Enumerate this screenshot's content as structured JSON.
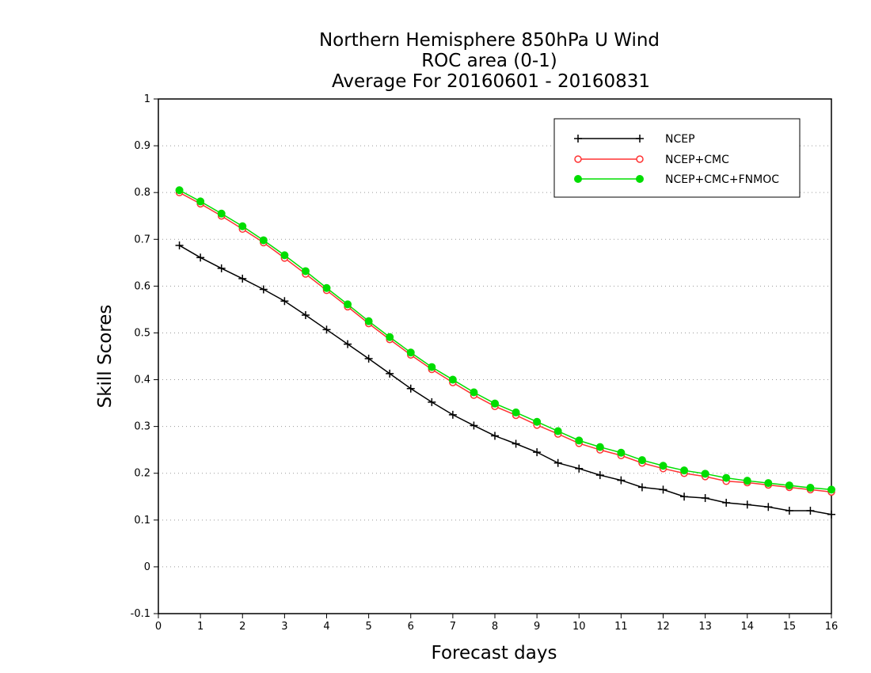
{
  "chart_data": {
    "type": "line",
    "title_lines": [
      "Northern Hemisphere 850hPa U Wind",
      "ROC area (0-1)",
      "Average For 20160601 - 20160831"
    ],
    "xlabel": "Forecast days",
    "ylabel": "Skill Scores",
    "xlim": [
      0,
      16
    ],
    "ylim": [
      -0.1,
      1
    ],
    "x_ticks": [
      0,
      1,
      2,
      3,
      4,
      5,
      6,
      7,
      8,
      9,
      10,
      11,
      12,
      13,
      14,
      15,
      16
    ],
    "x_tick_labels": [
      "0",
      "1",
      "2",
      "3",
      "4",
      "5",
      "6",
      "7",
      "8",
      "9",
      "10",
      "11",
      "12",
      "13",
      "14",
      "15",
      "16"
    ],
    "y_ticks": [
      -0.1,
      0,
      0.1,
      0.2,
      0.3,
      0.4,
      0.5,
      0.6,
      0.7,
      0.8,
      0.9,
      1
    ],
    "y_tick_labels": [
      "-0.1",
      "0",
      "0.1",
      "0.2",
      "0.3",
      "0.4",
      "0.5",
      "0.6",
      "0.7",
      "0.8",
      "0.9",
      "1"
    ],
    "grid": "horizontal dotted",
    "legend_position": "top-right",
    "x": [
      0.5,
      1,
      1.5,
      2,
      2.5,
      3,
      3.5,
      4,
      4.5,
      5,
      5.5,
      6,
      6.5,
      7,
      7.5,
      8,
      8.5,
      9,
      9.5,
      10,
      10.5,
      11,
      11.5,
      12,
      12.5,
      13,
      13.5,
      14,
      14.5,
      15,
      15.5,
      16
    ],
    "series": [
      {
        "name": "NCEP",
        "color": "#000000",
        "marker": "plus",
        "values": [
          0.687,
          0.661,
          0.638,
          0.616,
          0.593,
          0.568,
          0.538,
          0.507,
          0.476,
          0.445,
          0.413,
          0.381,
          0.352,
          0.325,
          0.302,
          0.28,
          0.263,
          0.245,
          0.222,
          0.21,
          0.196,
          0.185,
          0.17,
          0.165,
          0.15,
          0.147,
          0.137,
          0.133,
          0.128,
          0.12,
          0.12,
          0.112
        ]
      },
      {
        "name": "NCEP+CMC",
        "color": "#ff3333",
        "marker": "open-circle",
        "values": [
          0.8,
          0.776,
          0.75,
          0.722,
          0.693,
          0.66,
          0.626,
          0.591,
          0.556,
          0.52,
          0.486,
          0.453,
          0.422,
          0.394,
          0.367,
          0.343,
          0.324,
          0.303,
          0.284,
          0.264,
          0.25,
          0.238,
          0.222,
          0.21,
          0.2,
          0.193,
          0.183,
          0.18,
          0.175,
          0.17,
          0.165,
          0.16
        ]
      },
      {
        "name": "NCEP+CMC+FNMOC",
        "color": "#00dd00",
        "marker": "filled-circle",
        "values": [
          0.805,
          0.781,
          0.755,
          0.728,
          0.698,
          0.666,
          0.632,
          0.596,
          0.561,
          0.525,
          0.491,
          0.458,
          0.427,
          0.4,
          0.373,
          0.349,
          0.33,
          0.31,
          0.29,
          0.27,
          0.256,
          0.244,
          0.228,
          0.216,
          0.206,
          0.199,
          0.19,
          0.184,
          0.179,
          0.174,
          0.169,
          0.165
        ]
      }
    ]
  }
}
